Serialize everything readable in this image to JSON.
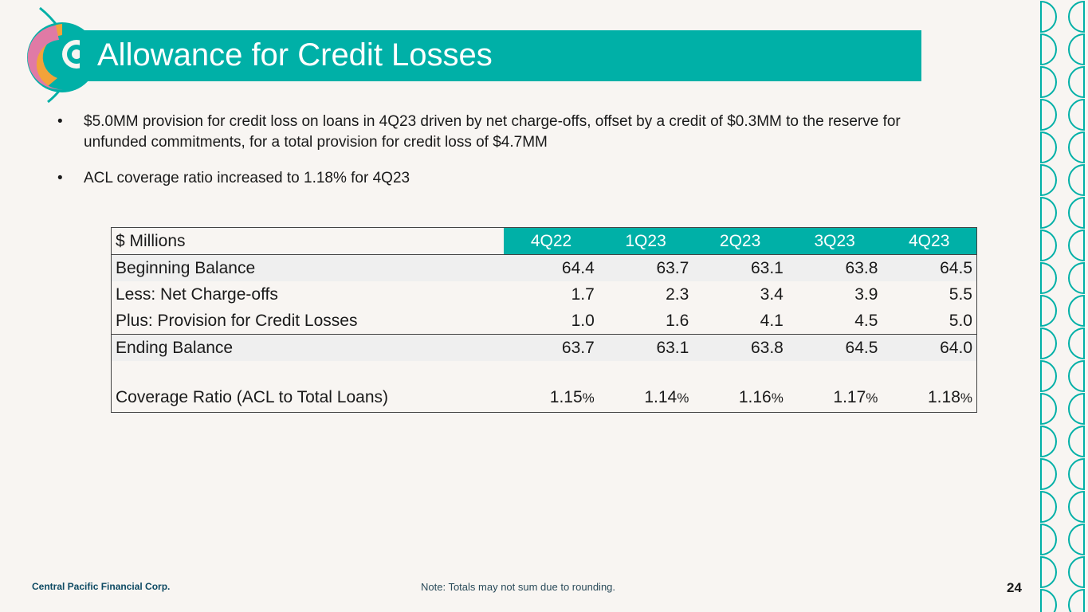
{
  "header": {
    "title": "Allowance for Credit Losses"
  },
  "bullets": [
    "$5.0MM provision for credit loss on loans in 4Q23 driven by net charge-offs, offset by a credit of $0.3MM to the reserve for unfunded commitments, for a total provision for credit loss of $4.7MM",
    "ACL coverage ratio increased to 1.18% for 4Q23"
  ],
  "bullet_glyph": "•",
  "table": {
    "unit_label": "$ Millions",
    "columns": [
      "4Q22",
      "1Q23",
      "2Q23",
      "3Q23",
      "4Q23"
    ],
    "rows": [
      {
        "label": "Beginning Balance",
        "values": [
          "64.4",
          "63.7",
          "63.1",
          "63.8",
          "64.5"
        ]
      },
      {
        "label": "Less: Net Charge-offs",
        "values": [
          "1.7",
          "2.3",
          "3.4",
          "3.9",
          "5.5"
        ]
      },
      {
        "label": "Plus: Provision for Credit Losses",
        "values": [
          "1.0",
          "1.6",
          "4.1",
          "4.5",
          "5.0"
        ]
      },
      {
        "label": "Ending Balance",
        "values": [
          "63.7",
          "63.1",
          "63.8",
          "64.5",
          "64.0"
        ]
      }
    ],
    "coverage": {
      "label": "Coverage Ratio (ACL to Total Loans)",
      "values": [
        "1.15",
        "1.14",
        "1.16",
        "1.17",
        "1.18"
      ],
      "suffix": "%"
    }
  },
  "footer": {
    "company": "Central Pacific Financial Corp.",
    "note": "Note: Totals may not sum due to rounding.",
    "page_number": "24"
  },
  "colors": {
    "accent": "#00b0a7",
    "background": "#f8f5f2",
    "logo_pink": "#e07aa5",
    "logo_orange": "#f2a33a",
    "logo_navy": "#0e4a63"
  },
  "icons": {
    "logo": "cpb-wave-logo",
    "pattern": "half-circle-pattern"
  }
}
